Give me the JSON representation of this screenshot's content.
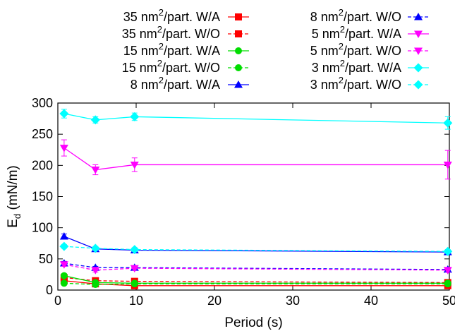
{
  "chart_data": {
    "type": "line",
    "xlabel": "Period (s)",
    "ylabel_main": "E",
    "ylabel_sub": "d",
    "ylabel_rest": " (mN/m)",
    "xlim": [
      0,
      50
    ],
    "ylim": [
      0,
      300
    ],
    "xticks": [
      0,
      10,
      20,
      30,
      40,
      50
    ],
    "yticks": [
      0,
      50,
      100,
      150,
      200,
      250,
      300
    ],
    "grid": false,
    "legend_position": "top",
    "x": [
      0.8,
      4.8,
      9.8,
      49.8
    ],
    "series": [
      {
        "name": "35 nm²/part. W/A",
        "label_pre": "35 nm",
        "label_post": "/part. W/A",
        "marker": "square",
        "dashed": false,
        "color": "#ff0000",
        "values": [
          15,
          10,
          7,
          7
        ],
        "errors": [
          2,
          2,
          2,
          2
        ]
      },
      {
        "name": "35 nm²/part. W/O",
        "label_pre": "35 nm",
        "label_post": "/part. W/O",
        "marker": "square",
        "dashed": true,
        "color": "#ff0000",
        "values": [
          20,
          15,
          14,
          12
        ],
        "errors": [
          2,
          2,
          2,
          2
        ]
      },
      {
        "name": "15 nm²/part. W/A",
        "label_pre": "15 nm",
        "label_post": "/part. W/A",
        "marker": "circle",
        "dashed": false,
        "color": "#00dd00",
        "values": [
          23,
          12,
          11,
          11
        ],
        "errors": [
          3,
          2,
          2,
          2
        ]
      },
      {
        "name": "15 nm²/part. W/O",
        "label_pre": "15 nm",
        "label_post": "/part. W/O",
        "marker": "circle",
        "dashed": true,
        "color": "#00dd00",
        "values": [
          11,
          9,
          10,
          10
        ],
        "errors": [
          2,
          2,
          2,
          2
        ]
      },
      {
        "name": "8 nm²/part. W/A",
        "label_pre": "8 nm",
        "label_post": "/part. W/A",
        "marker": "triangle-up",
        "dashed": false,
        "color": "#0000ff",
        "values": [
          86,
          66,
          64,
          61
        ],
        "errors": [
          4,
          3,
          3,
          3
        ]
      },
      {
        "name": "8 nm²/part. W/O",
        "label_pre": "8 nm",
        "label_post": "/part. W/O",
        "marker": "triangle-up",
        "dashed": true,
        "color": "#0000ff",
        "values": [
          43,
          36,
          36,
          33
        ],
        "errors": [
          3,
          2,
          2,
          2
        ]
      },
      {
        "name": "5 nm²/part. W/A",
        "label_pre": "5 nm",
        "label_post": "/part. W/A",
        "marker": "triangle-down",
        "dashed": false,
        "color": "#ff00ff",
        "values": [
          228,
          193,
          201,
          201
        ],
        "errors": [
          13,
          8,
          11,
          23
        ]
      },
      {
        "name": "5 nm²/part. W/O",
        "label_pre": "5 nm",
        "label_post": "/part. W/O",
        "marker": "triangle-down",
        "dashed": true,
        "color": "#ff00ff",
        "values": [
          41,
          32,
          35,
          32
        ],
        "errors": [
          3,
          3,
          3,
          3
        ]
      },
      {
        "name": "3 nm²/part. W/A",
        "label_pre": "3 nm",
        "label_post": "/part. W/A",
        "marker": "diamond",
        "dashed": false,
        "color": "#00ffff",
        "values": [
          283,
          273,
          278,
          268
        ],
        "errors": [
          7,
          5,
          6,
          10
        ]
      },
      {
        "name": "3 nm²/part. W/O",
        "label_pre": "3 nm",
        "label_post": "/part. W/O",
        "marker": "diamond",
        "dashed": true,
        "color": "#00ffff",
        "values": [
          70,
          67,
          65,
          62
        ],
        "errors": [
          3,
          3,
          3,
          3
        ]
      }
    ]
  }
}
